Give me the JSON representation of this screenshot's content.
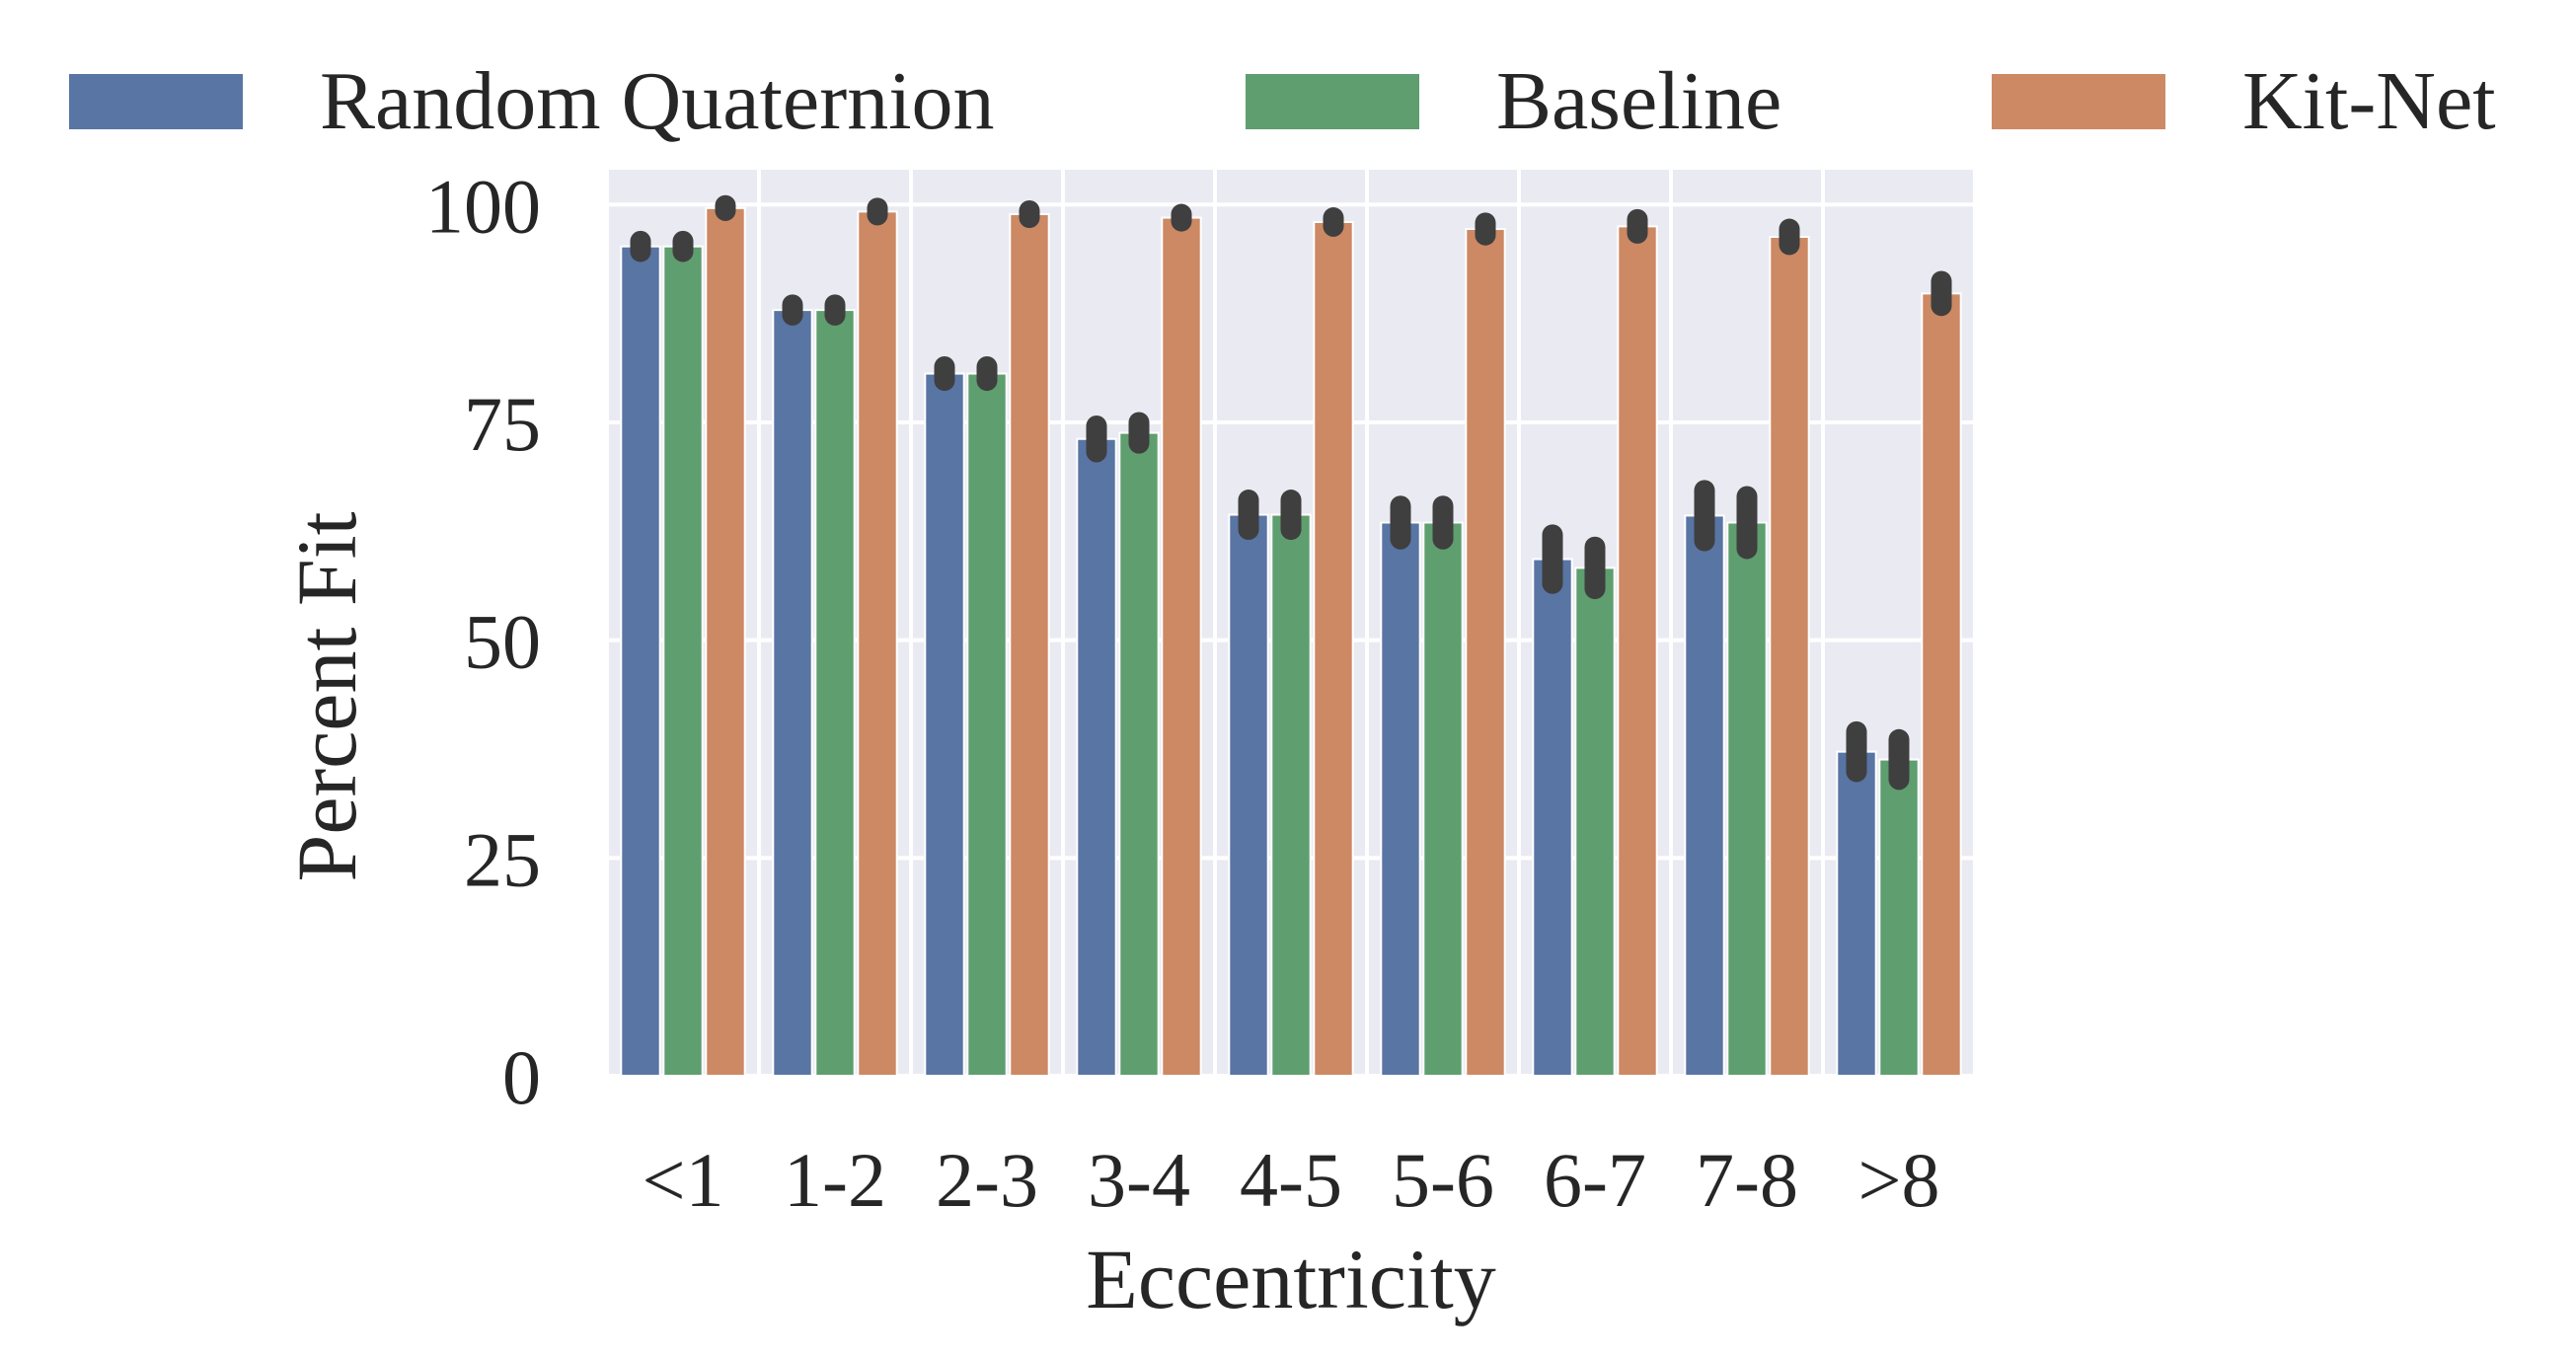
{
  "chart_data": {
    "type": "bar",
    "xlabel": "Eccentricity",
    "ylabel": "Percent Fit",
    "categories": [
      "<1",
      "1-2",
      "2-3",
      "3-4",
      "4-5",
      "5-6",
      "6-7",
      "7-8",
      ">8"
    ],
    "ylim": [
      0,
      104
    ],
    "yticks": [
      0,
      25,
      50,
      75,
      100
    ],
    "grid": true,
    "legend_position": "top",
    "series": [
      {
        "name": "Random Quaternion",
        "color": "#5975a4",
        "values": [
          95.2,
          87.9,
          80.6,
          73.1,
          64.4,
          63.5,
          59.3,
          64.3,
          37.2
        ],
        "error": [
          0.6,
          0.6,
          0.8,
          1.5,
          1.7,
          1.9,
          2.8,
          2.9,
          2.3
        ]
      },
      {
        "name": "Baseline",
        "color": "#5f9e6e",
        "values": [
          95.2,
          87.9,
          80.6,
          73.8,
          64.4,
          63.5,
          58.3,
          63.5,
          36.3
        ],
        "error": [
          0.6,
          0.6,
          0.8,
          1.2,
          1.7,
          1.9,
          2.4,
          3.0,
          2.3
        ]
      },
      {
        "name": "Kit-Net",
        "color": "#cc8963",
        "values": [
          99.6,
          99.2,
          98.9,
          98.5,
          98.0,
          97.2,
          97.5,
          96.3,
          89.8
        ],
        "error": [
          0.3,
          0.4,
          0.4,
          0.4,
          0.5,
          0.7,
          0.8,
          0.9,
          1.4
        ]
      }
    ]
  }
}
